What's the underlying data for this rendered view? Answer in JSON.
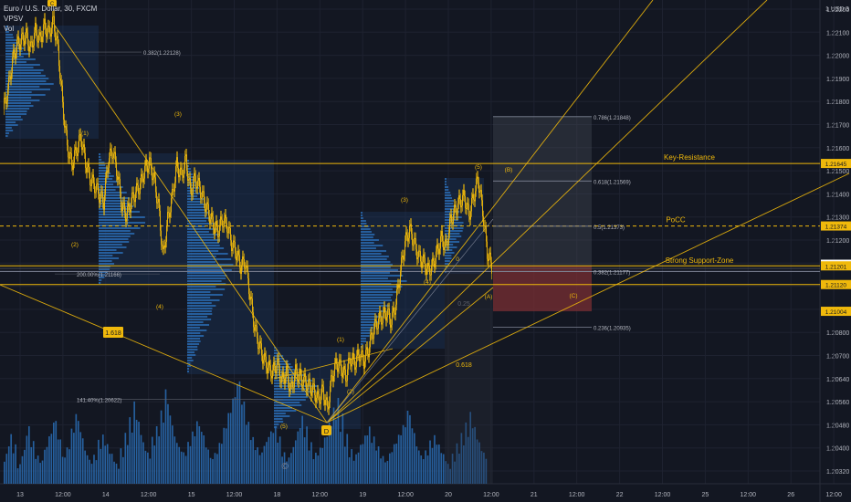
{
  "legend": {
    "symbol": "Euro / U.S. Dollar, 30, FXCM",
    "indicator_1": "VPSV",
    "indicator_2": "Vol"
  },
  "colors": {
    "background": "#131722",
    "grid": "#1e2230",
    "candle_up": "#f0b90b",
    "candle_down": "#f0b90b",
    "level_line": "#f0b90b",
    "volume": "#2a6db5",
    "profile": "#2a6db5",
    "profile_box": "#1d3a63",
    "label_text": "#f0b90b",
    "fib_text": "#b2b5be",
    "zone_red": "#7a2f33",
    "zone_grey": "#4a4f5c"
  },
  "axis": {
    "currency_label": "1 USD",
    "currency_digit": "3",
    "y_ticks": [
      "1.22200",
      "1.22100",
      "1.22000",
      "1.21900",
      "1.21800",
      "1.21700",
      "1.21600",
      "1.21500",
      "1.21400",
      "1.21300",
      "1.21200",
      "1.21100",
      "1.21000",
      "1.20900",
      "1.20800",
      "1.20700",
      "1.20640",
      "1.20560",
      "1.20480",
      "1.20400",
      "1.20320"
    ],
    "x_ticks": [
      "13",
      "12:00",
      "14",
      "12:00",
      "15",
      "12:00",
      "18",
      "12:00",
      "19",
      "12:00",
      "20",
      "12:00",
      "21",
      "12:00",
      "22",
      "12:00",
      "25",
      "12:00",
      "26",
      "12:00"
    ],
    "price_badges": [
      {
        "label": "1.21645",
        "price": 1.21645,
        "fill": "#f0b90b",
        "text": "#131722"
      },
      {
        "label": "1.21374",
        "price": 1.21374,
        "fill": "#f0b90b",
        "text": "#131722"
      },
      {
        "label": "1.21208",
        "price": 1.21208,
        "fill": "#ffffff",
        "text": "#131722"
      },
      {
        "label": "1.21201",
        "price": 1.21201,
        "fill": "#f0b90b",
        "text": "#131722"
      },
      {
        "label": "1.21120",
        "price": 1.2112,
        "fill": "#f0b90b",
        "text": "#131722"
      },
      {
        "label": "1.21004",
        "price": 1.21004,
        "fill": "#f0b90b",
        "text": "#131722"
      }
    ]
  },
  "annotations": {
    "key_resistance": "Key-Resistance",
    "pocc": "PoCC",
    "strong_support": "Strong Support-Zone",
    "fib_0382_top": "0.382(1.22128)",
    "fib_0786": "0.786(1.21848)",
    "fib_0618": "0.618(1.21569)",
    "fib_05": "0.5(1.21373)",
    "fib_0382": "0.382(1.21177)",
    "fib_0236": "0.236(1.20935)",
    "ext_200": "200.00%(1.21166)",
    "ext_1414": "141.40%(1.20622)",
    "ratio_1618": "1.618",
    "ratio_0618": "0.618",
    "ratio_025": "0.25",
    "wave_labels": [
      "(1)",
      "(2)",
      "(3)",
      "(4)",
      "(5)",
      "(1)",
      "(2)",
      "(3)",
      "(4)",
      "(5)",
      "(B)",
      "(A)",
      "(C)",
      "0"
    ],
    "point_d": "D",
    "point_c": "C"
  },
  "chart_data": {
    "type": "candlestick",
    "title": "Euro / U.S. Dollar, 30, FXCM",
    "ylim": [
      1.2028,
      1.2233
    ],
    "horizontal_levels": [
      {
        "name": "Key-Resistance",
        "price": 1.21645
      },
      {
        "name": "PoCC",
        "price": 1.21374
      },
      {
        "name": "Strong Support-Zone top",
        "price": 1.21201
      },
      {
        "name": "Strong Support-Zone bottom",
        "price": 1.2112
      }
    ],
    "price_path": [
      [
        0,
        1.2188
      ],
      [
        5,
        1.2196
      ],
      [
        10,
        1.2209
      ],
      [
        15,
        1.2216
      ],
      [
        20,
        1.2218
      ],
      [
        25,
        1.222
      ],
      [
        30,
        1.2214
      ],
      [
        35,
        1.2222
      ],
      [
        40,
        1.2218
      ],
      [
        45,
        1.2224
      ],
      [
        50,
        1.2221
      ],
      [
        55,
        1.2226
      ],
      [
        60,
        1.2214
      ],
      [
        65,
        1.219
      ],
      [
        70,
        1.2172
      ],
      [
        75,
        1.2164
      ],
      [
        80,
        1.217
      ],
      [
        85,
        1.2176
      ],
      [
        90,
        1.2165
      ],
      [
        95,
        1.2158
      ],
      [
        100,
        1.2155
      ],
      [
        105,
        1.2151
      ],
      [
        110,
        1.2148
      ],
      [
        115,
        1.2166
      ],
      [
        120,
        1.217
      ],
      [
        125,
        1.216
      ],
      [
        130,
        1.2146
      ],
      [
        135,
        1.2142
      ],
      [
        140,
        1.2148
      ],
      [
        145,
        1.2152
      ],
      [
        150,
        1.2155
      ],
      [
        155,
        1.2162
      ],
      [
        160,
        1.2165
      ],
      [
        165,
        1.2158
      ],
      [
        170,
        1.2146
      ],
      [
        175,
        1.2124
      ],
      [
        180,
        1.214
      ],
      [
        185,
        1.215
      ],
      [
        190,
        1.2164
      ],
      [
        195,
        1.2159
      ],
      [
        200,
        1.2166
      ],
      [
        205,
        1.2152
      ],
      [
        210,
        1.2158
      ],
      [
        215,
        1.2154
      ],
      [
        220,
        1.2148
      ],
      [
        225,
        1.2143
      ],
      [
        230,
        1.2138
      ],
      [
        235,
        1.2135
      ],
      [
        240,
        1.214
      ],
      [
        245,
        1.2138
      ],
      [
        250,
        1.213
      ],
      [
        255,
        1.2126
      ],
      [
        260,
        1.212
      ],
      [
        265,
        1.2122
      ],
      [
        270,
        1.2108
      ],
      [
        275,
        1.2094
      ],
      [
        280,
        1.2086
      ],
      [
        285,
        1.208
      ],
      [
        290,
        1.2076
      ],
      [
        295,
        1.2074
      ],
      [
        300,
        1.2078
      ],
      [
        305,
        1.207
      ],
      [
        310,
        1.2074
      ],
      [
        315,
        1.2066
      ],
      [
        320,
        1.2074
      ],
      [
        325,
        1.2072
      ],
      [
        330,
        1.207
      ],
      [
        335,
        1.2068
      ],
      [
        340,
        1.2066
      ],
      [
        345,
        1.2062
      ],
      [
        350,
        1.2066
      ],
      [
        355,
        1.2058
      ],
      [
        360,
        1.2072
      ],
      [
        365,
        1.2078
      ],
      [
        370,
        1.2076
      ],
      [
        375,
        1.2072
      ],
      [
        380,
        1.208
      ],
      [
        385,
        1.2078
      ],
      [
        390,
        1.2082
      ],
      [
        395,
        1.2079
      ],
      [
        400,
        1.2084
      ],
      [
        405,
        1.2092
      ],
      [
        410,
        1.2096
      ],
      [
        415,
        1.2098
      ],
      [
        420,
        1.21
      ],
      [
        425,
        1.2096
      ],
      [
        430,
        1.2104
      ],
      [
        435,
        1.2118
      ],
      [
        440,
        1.213
      ],
      [
        445,
        1.2136
      ],
      [
        450,
        1.213
      ],
      [
        455,
        1.2124
      ],
      [
        460,
        1.2122
      ],
      [
        465,
        1.2118
      ],
      [
        470,
        1.212
      ],
      [
        475,
        1.2126
      ],
      [
        480,
        1.2132
      ],
      [
        485,
        1.2128
      ],
      [
        490,
        1.214
      ],
      [
        495,
        1.2144
      ],
      [
        500,
        1.2148
      ],
      [
        505,
        1.215
      ],
      [
        510,
        1.2142
      ],
      [
        515,
        1.215
      ],
      [
        520,
        1.2158
      ],
      [
        525,
        1.2144
      ],
      [
        530,
        1.2126
      ],
      [
        535,
        1.212
      ]
    ],
    "volume_heights_0_to_1": [
      0.3,
      0.5,
      0.4,
      0.2,
      0.35,
      0.6,
      0.45,
      0.3,
      0.25,
      0.4,
      0.55,
      0.7,
      0.5,
      0.3,
      0.4,
      0.6,
      0.75,
      0.55,
      0.35,
      0.25,
      0.3,
      0.45,
      0.5,
      0.4,
      0.3,
      0.2,
      0.35,
      0.5,
      0.65,
      0.8,
      0.6,
      0.4,
      0.3,
      0.45,
      0.55,
      0.7,
      0.9,
      0.65,
      0.45,
      0.35,
      0.3,
      0.4,
      0.5,
      0.6,
      0.5,
      0.35,
      0.25,
      0.3,
      0.4,
      0.55,
      0.7,
      0.85,
      1.0,
      0.8,
      0.6,
      0.45,
      0.35,
      0.3,
      0.4,
      0.5,
      0.55,
      0.45,
      0.3,
      0.25,
      0.35,
      0.5,
      0.65,
      0.55,
      0.4,
      0.3,
      0.35,
      0.45,
      0.6,
      0.75,
      0.85,
      0.7,
      0.5,
      0.35,
      0.3,
      0.4,
      0.5,
      0.6,
      0.5,
      0.4,
      0.3,
      0.25,
      0.35,
      0.45,
      0.55,
      0.65,
      0.8,
      0.6,
      0.4,
      0.3,
      0.35,
      0.45,
      0.5,
      0.4,
      0.3,
      0.2,
      0.3,
      0.4,
      0.5,
      0.6,
      0.7,
      0.55,
      0.4,
      0.3
    ]
  }
}
